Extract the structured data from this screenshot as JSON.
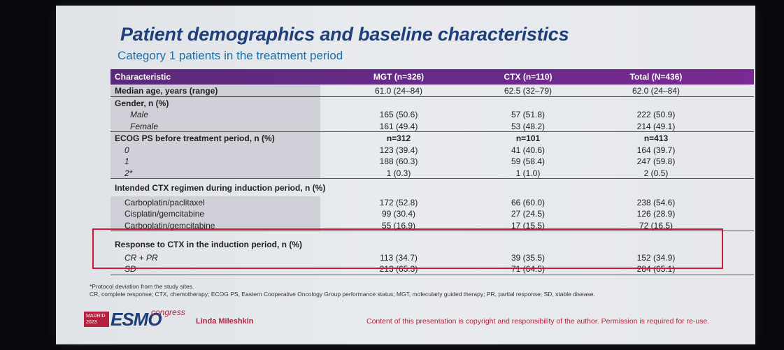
{
  "slide": {
    "title": "Patient demographics and baseline characteristics",
    "subtitle": "Category 1 patients in the treatment period"
  },
  "table": {
    "headers": [
      "Characteristic",
      "MGT (n=326)",
      "CTX (n=110)",
      "Total (N=436)"
    ],
    "age": {
      "label": "Median age, years (range)",
      "values": [
        "61.0 (24–84)",
        "62.5 (32–79)",
        "62.0 (24–84)"
      ]
    },
    "gender": {
      "label": "Gender, n (%)",
      "rows": [
        {
          "label": "Male",
          "values": [
            "165 (50.6)",
            "57 (51.8)",
            "222 (50.9)"
          ]
        },
        {
          "label": "Female",
          "values": [
            "161 (49.4)",
            "53 (48.2)",
            "214 (49.1)"
          ]
        }
      ]
    },
    "ecog": {
      "label": "ECOG PS before treatment period, n (%)",
      "n_values": [
        "n=312",
        "n=101",
        "n=413"
      ],
      "rows": [
        {
          "label": "0",
          "values": [
            "123 (39.4)",
            "41 (40.6)",
            "164 (39.7)"
          ]
        },
        {
          "label": "1",
          "values": [
            "188 (60.3)",
            "59 (58.4)",
            "247 (59.8)"
          ]
        },
        {
          "label": "2*",
          "values": [
            "1 (0.3)",
            "1 (1.0)",
            "2 (0.5)"
          ]
        }
      ]
    },
    "regimen": {
      "label": "Intended CTX regimen during induction period, n (%)",
      "rows": [
        {
          "label": "Carboplatin/paclitaxel",
          "values": [
            "172 (52.8)",
            "66 (60.0)",
            "238 (54.6)"
          ]
        },
        {
          "label": "Cisplatin/gemcitabine",
          "values": [
            "99 (30.4)",
            "27 (24.5)",
            "126 (28.9)"
          ]
        },
        {
          "label": "Carboplatin/gemcitabine",
          "values": [
            "55 (16.9)",
            "17 (15.5)",
            "72 (16.5)"
          ]
        }
      ]
    },
    "response": {
      "label": "Response to CTX in the induction period, n (%)",
      "rows": [
        {
          "label": "CR + PR",
          "values": [
            "113 (34.7)",
            "39 (35.5)",
            "152 (34.9)"
          ]
        },
        {
          "label": "SD",
          "values": [
            "213 (65.3)",
            "71 (64.5)",
            "284 (65.1)"
          ]
        }
      ]
    }
  },
  "footnotes": {
    "line1": "*Protocol deviation from the study sites.",
    "line2": "CR, complete response; CTX, chemotherapy; ECOG PS, Eastern Cooperative Oncology Group performance status; MGT, molecularly guided therapy; PR, partial response; SD, stable disease."
  },
  "footer": {
    "logo_city": "MADRID",
    "logo_year": "2023",
    "logo_brand": "ESMO",
    "logo_suffix": "congress",
    "author": "Linda Mileshkin",
    "copyright": "Content of this presentation is copyright and responsibility of the author. Permission is required for re-use."
  },
  "colors": {
    "header_bg": "#6a2a8a",
    "title": "#1f3f7a",
    "subtitle": "#1f6fa3",
    "highlight_box": "#d3163c",
    "brand_red": "#b4223e"
  }
}
